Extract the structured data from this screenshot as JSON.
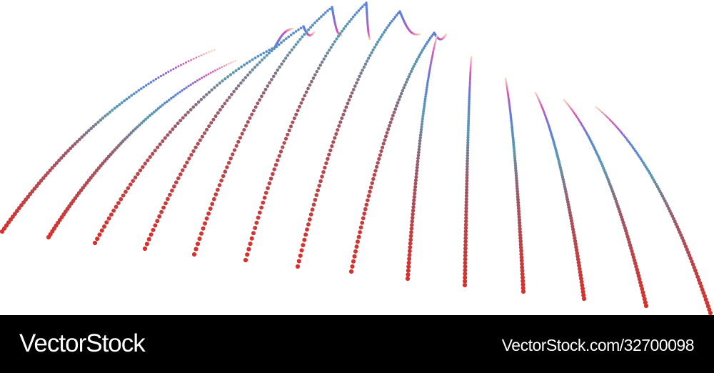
{
  "watermark": {
    "brand": "VectorStock",
    "reference": "VectorStock.com/32700098"
  },
  "illustration": {
    "description_type": "dotted-wave-lines",
    "colors": [
      "#d8302a",
      "#9a5a6a",
      "#5a9ab0",
      "#5a80d8",
      "#d850b8",
      "#f8d2b0"
    ]
  }
}
